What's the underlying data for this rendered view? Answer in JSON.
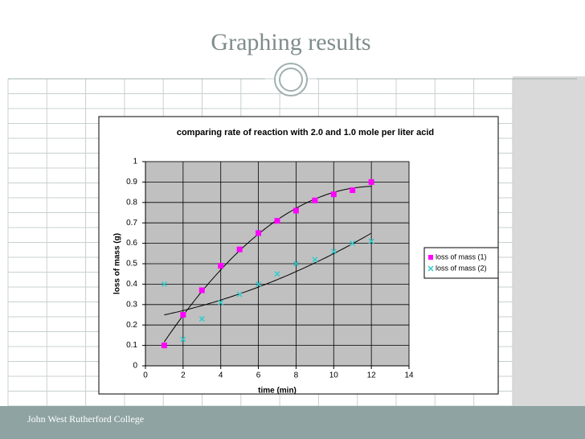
{
  "title": "Graphing results",
  "footer": "John West Rutherford College",
  "chart_data": {
    "type": "scatter",
    "title": "comparing rate of reaction with 2.0 and 1.0 mole per liter acid",
    "x_label": "time (min)",
    "y_label": "loss of mass (g)",
    "x": [
      1,
      2,
      3,
      4,
      5,
      6,
      7,
      8,
      9,
      10,
      11,
      12
    ],
    "series": [
      {
        "name": "loss of mass (1)",
        "color": "#ff00ff",
        "values": [
          0.1,
          0.25,
          0.37,
          0.49,
          0.57,
          0.65,
          0.71,
          0.76,
          0.81,
          0.84,
          0.86,
          0.9
        ]
      },
      {
        "name": "loss of mass (2)",
        "color": "#33cccc",
        "values": [
          0.4,
          0.13,
          0.23,
          0.31,
          0.35,
          0.4,
          0.45,
          0.5,
          0.52,
          0.56,
          0.6,
          0.61
        ]
      }
    ],
    "xlim": [
      0,
      14
    ],
    "xticks": [
      0,
      2,
      4,
      6,
      8,
      10,
      12,
      14
    ],
    "ylim": [
      0,
      1
    ],
    "yticks": [
      0,
      0.1,
      0.2,
      0.3,
      0.4,
      0.5,
      0.6,
      0.7,
      0.8,
      0.9,
      1
    ],
    "grid": true,
    "legend": "right"
  }
}
